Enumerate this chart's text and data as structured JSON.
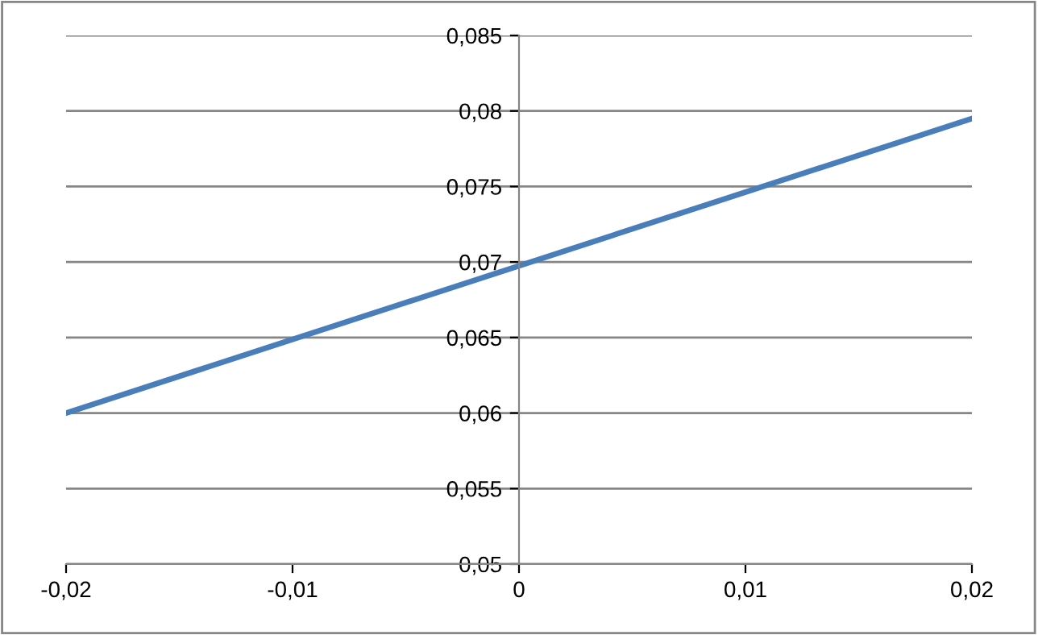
{
  "chart_data": {
    "type": "line",
    "x": [
      -0.02,
      0.02
    ],
    "series": [
      {
        "color": "#4a7ebb",
        "values": [
          0.06,
          0.0795
        ]
      }
    ],
    "xlim": [
      -0.02,
      0.02
    ],
    "xticks": [
      {
        "value": -0.02,
        "label": "-0,02"
      },
      {
        "value": -0.01,
        "label": "-0,01"
      },
      0,
      {
        "value": 0.01,
        "label": "0,01"
      },
      {
        "value": 0.02,
        "label": "0,02"
      }
    ],
    "ylim": [
      0.05,
      0.085
    ],
    "yticks": [
      {
        "value": 0.05,
        "label": "0,05"
      },
      {
        "value": 0.055,
        "label": "0,055"
      },
      {
        "value": 0.06,
        "label": "0,06"
      },
      {
        "value": 0.065,
        "label": "0,065"
      },
      {
        "value": 0.07,
        "label": "0,07"
      },
      {
        "value": 0.075,
        "label": "0,075"
      },
      {
        "value": 0.08,
        "label": "0,08"
      },
      {
        "value": 0.085,
        "label": "0,085"
      }
    ],
    "grid": "y",
    "legend": false,
    "marker": "none",
    "line_style": "solid"
  }
}
